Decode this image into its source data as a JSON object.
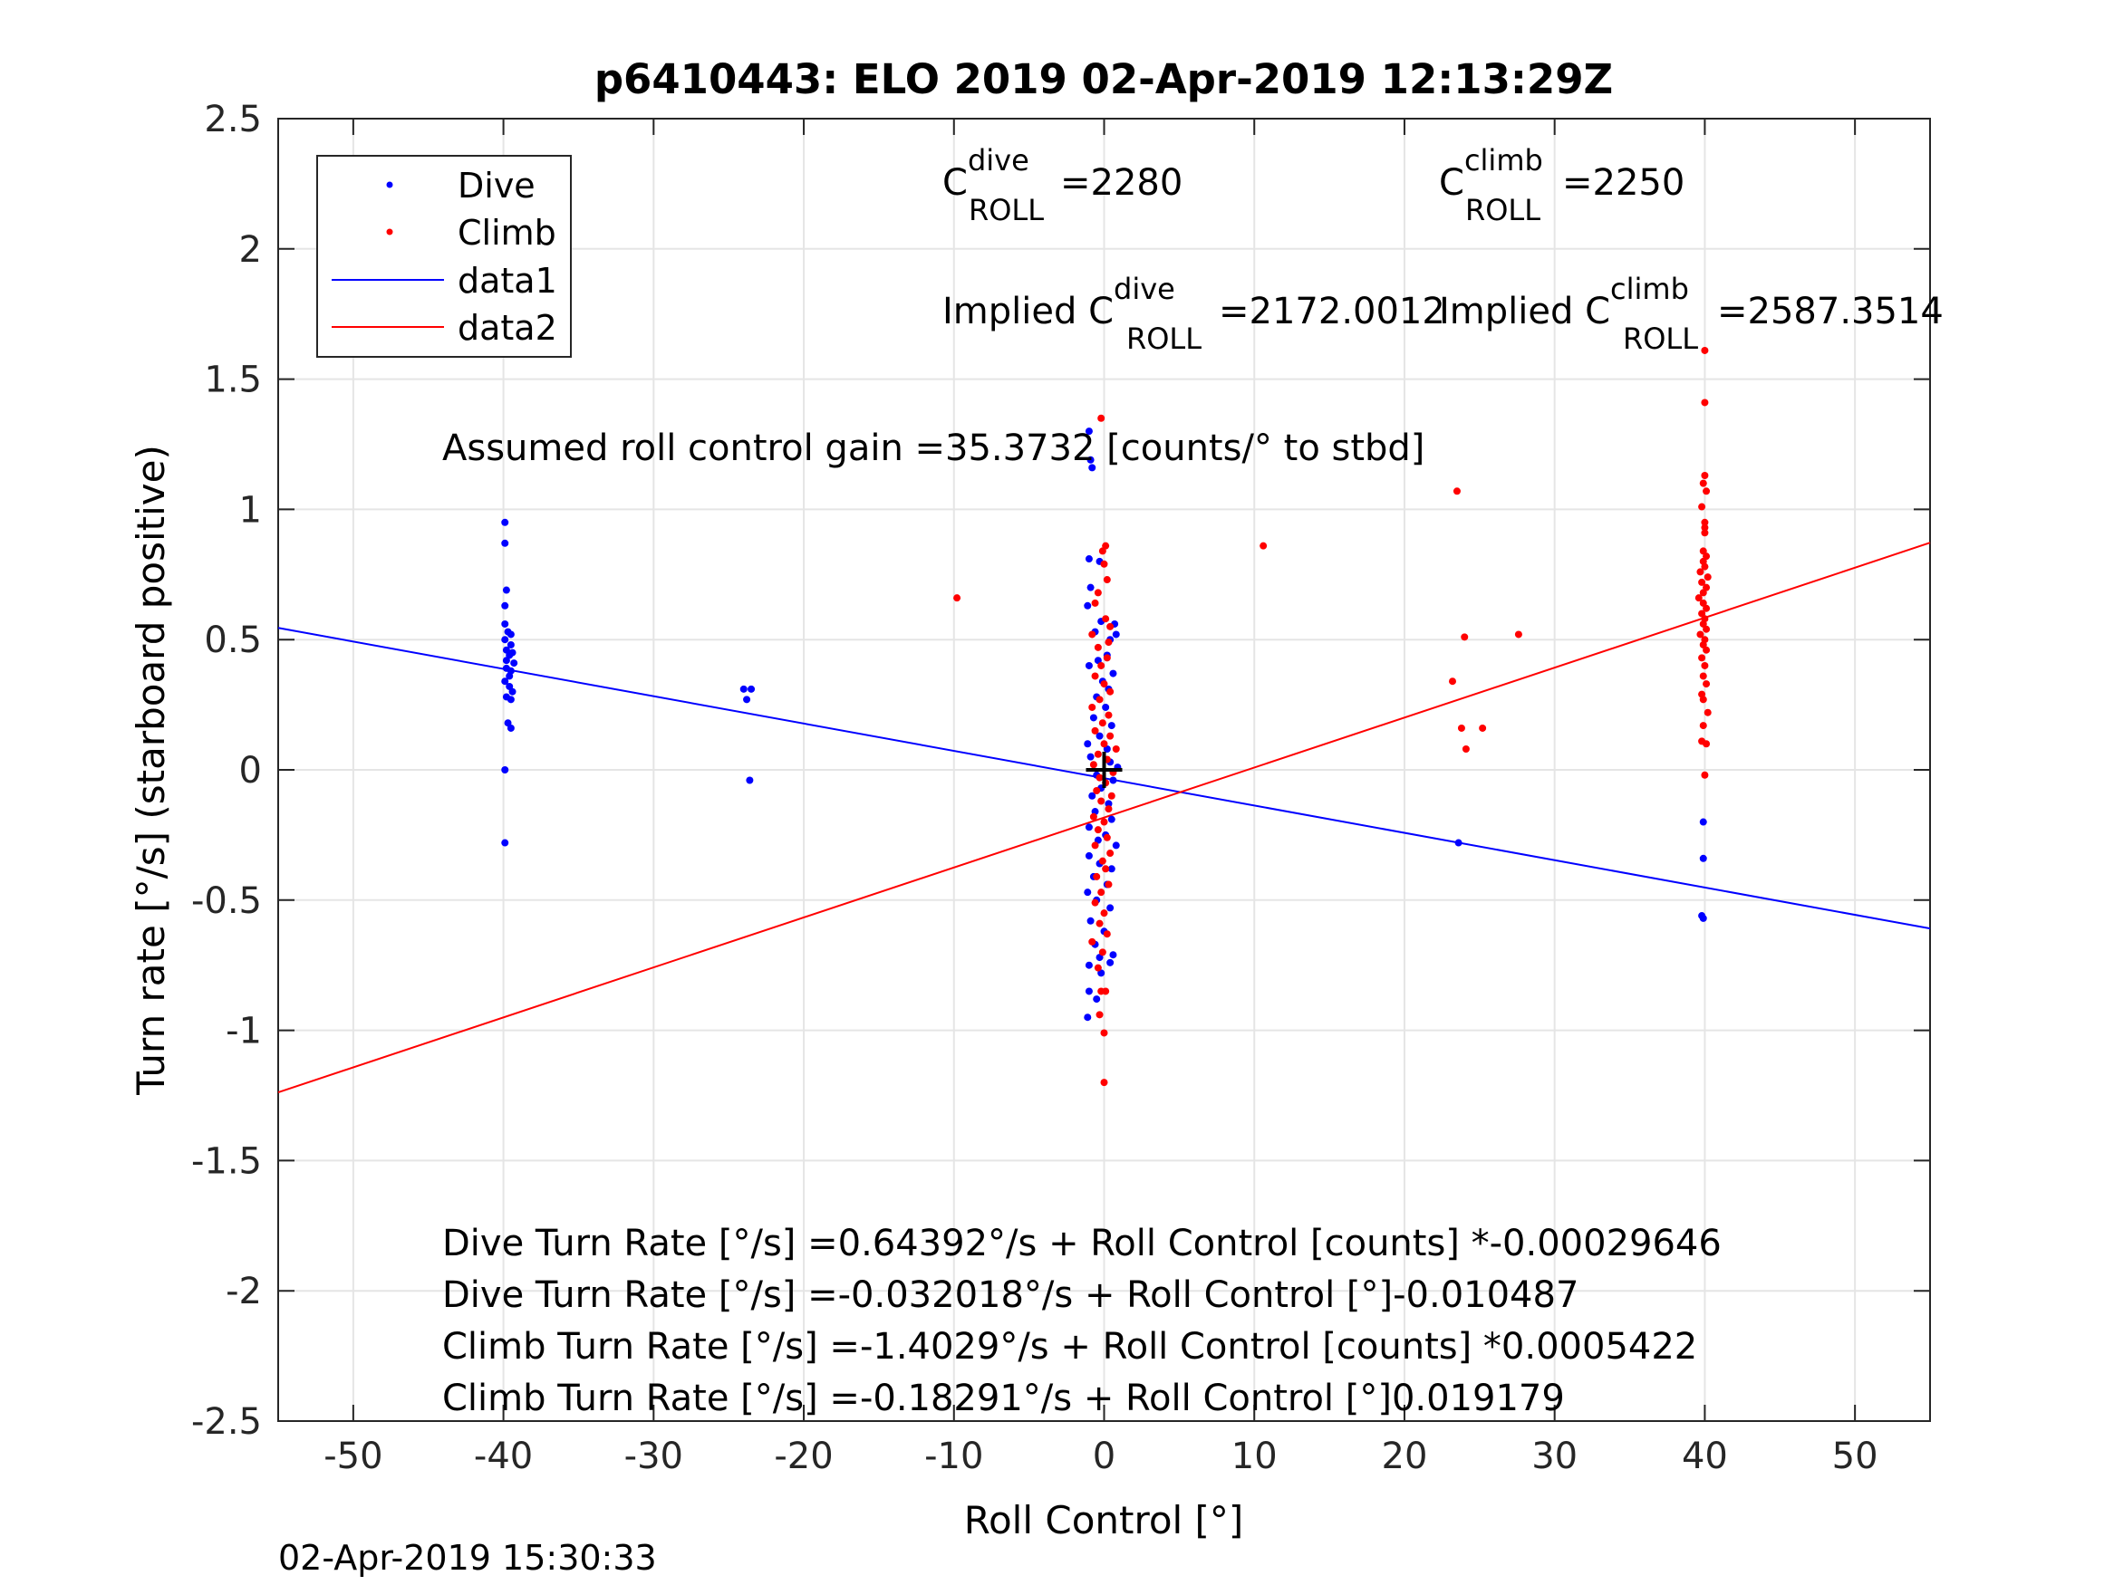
{
  "footer_timestamp": "02-Apr-2019 15:30:33",
  "colors": {
    "dive": "#0000ff",
    "climb": "#ff0000",
    "grid": "#e5e5e5",
    "axes": "#262626"
  },
  "chart_data": {
    "type": "scatter",
    "title": "p6410443: ELO 2019 02-Apr-2019 12:13:29Z",
    "xlabel": "Roll Control [°]",
    "ylabel": "Turn rate [°/s] (starboard positive)",
    "xlim": [
      -55,
      55
    ],
    "ylim": [
      -2.5,
      2.5
    ],
    "xticks": [
      "-50",
      "-40",
      "-30",
      "-20",
      "-10",
      "0",
      "10",
      "20",
      "30",
      "40",
      "50"
    ],
    "yticks": [
      "2.5",
      "2",
      "1.5",
      "1",
      "0.5",
      "0",
      "-0.5",
      "-1",
      "-1.5",
      "-2",
      "-2.5"
    ],
    "grid": true,
    "legend_position": "top-left",
    "legend": [
      {
        "label": "Dive",
        "style": "marker",
        "color": "#0000ff"
      },
      {
        "label": "Climb",
        "style": "marker",
        "color": "#ff0000"
      },
      {
        "label": "data1",
        "style": "line",
        "color": "#0000ff"
      },
      {
        "label": "data2",
        "style": "line",
        "color": "#ff0000"
      }
    ],
    "annotations": {
      "c_dive": {
        "base": "C",
        "sup": "dive",
        "sub": "ROLL",
        "value": "=2280"
      },
      "c_climb": {
        "base": "C",
        "sup": "climb",
        "sub": "ROLL",
        "value": "=2250"
      },
      "implied_dive": {
        "base": "Implied C",
        "sup": "dive",
        "sub": "ROLL",
        "value": "=2172.0012"
      },
      "implied_climb": {
        "base": "Implied C",
        "sup": "climb",
        "sub": "ROLL",
        "value": "=2587.3514"
      },
      "gain": "Assumed roll control gain =35.3732 [counts/° to stbd]",
      "eq1": "Dive Turn Rate [°/s] =0.64392°/s + Roll Control [counts] *-0.00029646",
      "eq2": "Dive Turn Rate [°/s] =-0.032018°/s + Roll Control [°]-0.010487",
      "eq3": "Climb Turn Rate [°/s] =-1.4029°/s + Roll Control [counts] *0.0005422",
      "eq4": "Climb Turn Rate [°/s] =-0.18291°/s + Roll Control [°]0.019179"
    },
    "series": [
      {
        "name": "Dive",
        "type": "scatter",
        "color": "#0000ff",
        "points": [
          [
            -39.9,
            0.95
          ],
          [
            -39.9,
            0.87
          ],
          [
            -39.8,
            0.69
          ],
          [
            -39.9,
            0.63
          ],
          [
            -39.9,
            0.56
          ],
          [
            -39.7,
            0.53
          ],
          [
            -39.5,
            0.52
          ],
          [
            -39.9,
            0.5
          ],
          [
            -39.5,
            0.48
          ],
          [
            -39.8,
            0.46
          ],
          [
            -39.4,
            0.45
          ],
          [
            -39.6,
            0.44
          ],
          [
            -39.8,
            0.42
          ],
          [
            -39.3,
            0.41
          ],
          [
            -39.8,
            0.39
          ],
          [
            -39.5,
            0.38
          ],
          [
            -39.6,
            0.36
          ],
          [
            -39.9,
            0.34
          ],
          [
            -39.6,
            0.32
          ],
          [
            -39.4,
            0.3
          ],
          [
            -39.8,
            0.28
          ],
          [
            -39.5,
            0.27
          ],
          [
            -39.7,
            0.18
          ],
          [
            -39.5,
            0.16
          ],
          [
            -39.9,
            0.0
          ],
          [
            -39.9,
            -0.28
          ],
          [
            -24.0,
            0.31
          ],
          [
            -23.5,
            0.31
          ],
          [
            -23.8,
            0.27
          ],
          [
            -23.6,
            -0.04
          ],
          [
            -1.0,
            1.3
          ],
          [
            -0.9,
            1.19
          ],
          [
            -0.8,
            1.16
          ],
          [
            -1.0,
            0.81
          ],
          [
            -0.3,
            0.8
          ],
          [
            -0.9,
            0.7
          ],
          [
            -1.1,
            0.63
          ],
          [
            -0.2,
            0.57
          ],
          [
            0.7,
            0.56
          ],
          [
            -0.6,
            0.53
          ],
          [
            0.4,
            0.5
          ],
          [
            0.8,
            0.52
          ],
          [
            0.2,
            0.44
          ],
          [
            -0.4,
            0.42
          ],
          [
            -1.0,
            0.4
          ],
          [
            0.6,
            0.37
          ],
          [
            -0.1,
            0.34
          ],
          [
            0.3,
            0.31
          ],
          [
            -0.5,
            0.28
          ],
          [
            0.1,
            0.24
          ],
          [
            -0.7,
            0.2
          ],
          [
            0.5,
            0.17
          ],
          [
            -0.3,
            0.13
          ],
          [
            -1.1,
            0.1
          ],
          [
            0.2,
            0.08
          ],
          [
            -0.9,
            0.05
          ],
          [
            0.4,
            0.03
          ],
          [
            0.9,
            0.01
          ],
          [
            -0.5,
            -0.02
          ],
          [
            0.6,
            -0.04
          ],
          [
            -0.2,
            -0.07
          ],
          [
            -0.8,
            -0.1
          ],
          [
            0.3,
            -0.13
          ],
          [
            -0.6,
            -0.16
          ],
          [
            0.5,
            -0.19
          ],
          [
            -1.0,
            -0.22
          ],
          [
            0.1,
            -0.25
          ],
          [
            -0.4,
            -0.27
          ],
          [
            0.8,
            -0.29
          ],
          [
            -1.0,
            -0.33
          ],
          [
            -0.3,
            -0.36
          ],
          [
            0.5,
            -0.38
          ],
          [
            -0.7,
            -0.41
          ],
          [
            0.2,
            -0.44
          ],
          [
            -1.1,
            -0.47
          ],
          [
            -0.5,
            -0.5
          ],
          [
            0.4,
            -0.53
          ],
          [
            -0.9,
            -0.58
          ],
          [
            0.0,
            -0.62
          ],
          [
            -0.6,
            -0.67
          ],
          [
            0.6,
            -0.71
          ],
          [
            -0.3,
            -0.72
          ],
          [
            0.4,
            -0.74
          ],
          [
            -1.0,
            -0.75
          ],
          [
            -0.2,
            -0.78
          ],
          [
            -1.0,
            -0.85
          ],
          [
            -0.5,
            -0.88
          ],
          [
            -1.1,
            -0.95
          ],
          [
            23.6,
            -0.28
          ],
          [
            39.9,
            -0.2
          ],
          [
            39.9,
            -0.34
          ],
          [
            39.8,
            -0.56
          ],
          [
            39.9,
            -0.57
          ]
        ]
      },
      {
        "name": "Climb",
        "type": "scatter",
        "color": "#ff0000",
        "points": [
          [
            -9.8,
            0.66
          ],
          [
            10.6,
            0.86
          ],
          [
            -0.2,
            1.35
          ],
          [
            0.1,
            0.86
          ],
          [
            -0.1,
            0.84
          ],
          [
            0.0,
            0.79
          ],
          [
            0.2,
            0.73
          ],
          [
            -0.4,
            0.68
          ],
          [
            -0.6,
            0.64
          ],
          [
            0.1,
            0.58
          ],
          [
            0.4,
            0.55
          ],
          [
            -0.8,
            0.52
          ],
          [
            0.3,
            0.49
          ],
          [
            -0.4,
            0.47
          ],
          [
            0.2,
            0.43
          ],
          [
            -0.2,
            0.4
          ],
          [
            -0.6,
            0.36
          ],
          [
            0.0,
            0.33
          ],
          [
            0.4,
            0.3
          ],
          [
            -0.3,
            0.27
          ],
          [
            -0.8,
            0.24
          ],
          [
            0.3,
            0.21
          ],
          [
            -0.1,
            0.18
          ],
          [
            -0.6,
            0.15
          ],
          [
            0.4,
            0.13
          ],
          [
            0.0,
            0.1
          ],
          [
            0.8,
            0.08
          ],
          [
            -0.4,
            0.06
          ],
          [
            0.2,
            0.04
          ],
          [
            -0.7,
            0.02
          ],
          [
            0.6,
            -0.01
          ],
          [
            -0.3,
            -0.03
          ],
          [
            0.1,
            -0.05
          ],
          [
            -0.5,
            -0.08
          ],
          [
            0.5,
            -0.1
          ],
          [
            -0.2,
            -0.12
          ],
          [
            0.3,
            -0.15
          ],
          [
            -0.7,
            -0.18
          ],
          [
            0.0,
            -0.2
          ],
          [
            -0.4,
            -0.23
          ],
          [
            0.2,
            -0.26
          ],
          [
            -0.6,
            -0.29
          ],
          [
            0.4,
            -0.32
          ],
          [
            -0.1,
            -0.35
          ],
          [
            0.1,
            -0.38
          ],
          [
            -0.5,
            -0.41
          ],
          [
            0.3,
            -0.44
          ],
          [
            -0.2,
            -0.47
          ],
          [
            -0.6,
            -0.51
          ],
          [
            0.0,
            -0.55
          ],
          [
            -0.3,
            -0.59
          ],
          [
            0.2,
            -0.63
          ],
          [
            -0.8,
            -0.66
          ],
          [
            -0.1,
            -0.7
          ],
          [
            -0.4,
            -0.76
          ],
          [
            0.1,
            -0.85
          ],
          [
            -0.2,
            -0.85
          ],
          [
            -0.3,
            -0.94
          ],
          [
            0.0,
            -1.01
          ],
          [
            0.0,
            -1.2
          ],
          [
            23.5,
            1.07
          ],
          [
            24.0,
            0.51
          ],
          [
            27.6,
            0.52
          ],
          [
            23.2,
            0.34
          ],
          [
            23.8,
            0.16
          ],
          [
            25.2,
            0.16
          ],
          [
            24.1,
            0.08
          ],
          [
            40.0,
            1.61
          ],
          [
            40.0,
            1.41
          ],
          [
            40.0,
            1.13
          ],
          [
            39.9,
            1.1
          ],
          [
            40.1,
            1.07
          ],
          [
            39.8,
            1.01
          ],
          [
            40.0,
            0.95
          ],
          [
            40.0,
            0.93
          ],
          [
            40.0,
            0.91
          ],
          [
            39.9,
            0.84
          ],
          [
            40.1,
            0.82
          ],
          [
            39.9,
            0.8
          ],
          [
            40.0,
            0.78
          ],
          [
            39.7,
            0.76
          ],
          [
            40.2,
            0.74
          ],
          [
            39.8,
            0.72
          ],
          [
            40.1,
            0.7
          ],
          [
            39.9,
            0.68
          ],
          [
            39.6,
            0.66
          ],
          [
            39.9,
            0.64
          ],
          [
            40.1,
            0.62
          ],
          [
            39.8,
            0.6
          ],
          [
            40.0,
            0.58
          ],
          [
            39.9,
            0.56
          ],
          [
            40.1,
            0.54
          ],
          [
            39.7,
            0.52
          ],
          [
            40.0,
            0.5
          ],
          [
            39.9,
            0.48
          ],
          [
            40.1,
            0.46
          ],
          [
            39.8,
            0.43
          ],
          [
            40.0,
            0.4
          ],
          [
            39.9,
            0.36
          ],
          [
            40.1,
            0.33
          ],
          [
            39.8,
            0.29
          ],
          [
            39.9,
            0.27
          ],
          [
            40.2,
            0.22
          ],
          [
            39.9,
            0.17
          ],
          [
            39.8,
            0.11
          ],
          [
            40.1,
            0.1
          ],
          [
            40.0,
            -0.02
          ]
        ]
      },
      {
        "name": "data1",
        "type": "line",
        "color": "#0000ff",
        "x": [
          -55,
          55
        ],
        "y": [
          0.545,
          -0.609
        ]
      },
      {
        "name": "data2",
        "type": "line",
        "color": "#ff0000",
        "x": [
          -55,
          55
        ],
        "y": [
          -1.238,
          0.872
        ]
      }
    ],
    "center_marker": {
      "x": 0,
      "y": 0,
      "symbol": "plus",
      "color": "#000000"
    }
  }
}
